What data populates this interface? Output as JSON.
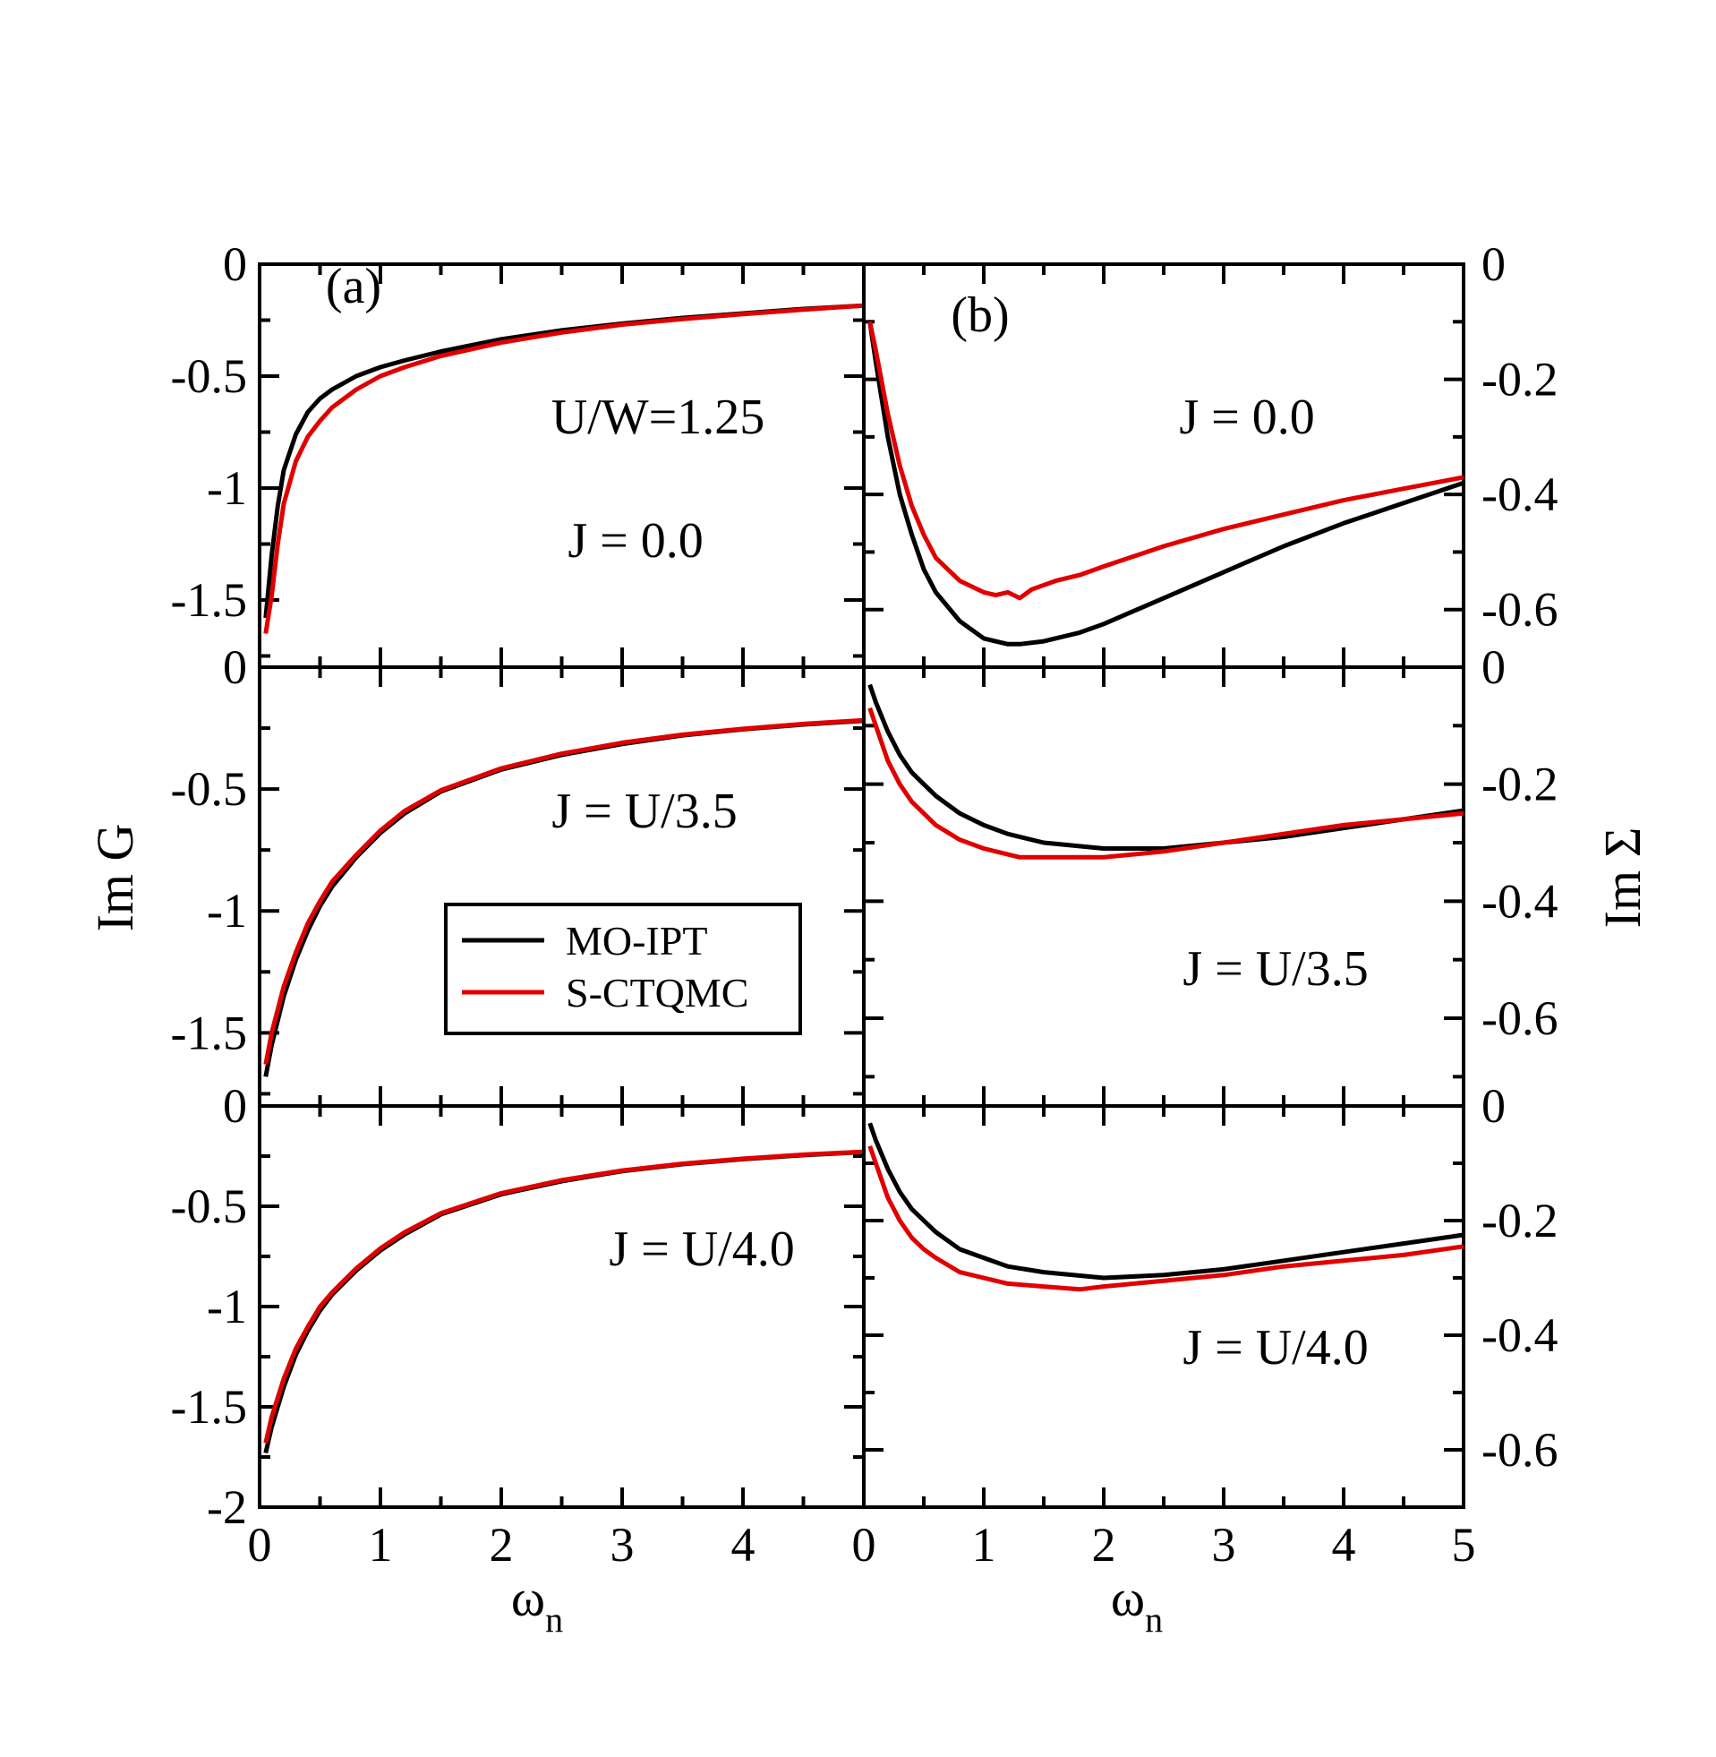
{
  "figure": {
    "x_title": "ω",
    "x_title_sub": "n",
    "y_title_left": "Im G",
    "y_title_right": "Im Σ"
  },
  "legend": {
    "entries": [
      {
        "label": "MO-IPT",
        "color": "#000000"
      },
      {
        "label": "S-CTQMC",
        "color": "#e00000"
      }
    ]
  },
  "colors": {
    "mo_ipt": "#000000",
    "s_ctqmc": "#e00000"
  },
  "chart_data": [
    {
      "type": "line",
      "column": "a",
      "row": 1,
      "panel_label": "(a)",
      "annotations": [
        "U/W=1.25",
        "J = 0.0"
      ],
      "xlim": [
        0,
        5
      ],
      "ylim": [
        -1.8,
        0
      ],
      "y_tick_labels": [
        "0",
        "-0.5",
        "-1",
        "-1.5"
      ],
      "x_tick_labels": [],
      "series": [
        {
          "name": "MO-IPT",
          "color": "#000000",
          "x": [
            0.05,
            0.1,
            0.15,
            0.2,
            0.3,
            0.4,
            0.5,
            0.6,
            0.8,
            1.0,
            1.2,
            1.5,
            2.0,
            2.5,
            3.0,
            3.5,
            4.0,
            4.5,
            5.0
          ],
          "y": [
            -1.58,
            -1.3,
            -1.08,
            -0.92,
            -0.76,
            -0.66,
            -0.6,
            -0.56,
            -0.5,
            -0.46,
            -0.43,
            -0.39,
            -0.335,
            -0.295,
            -0.265,
            -0.24,
            -0.22,
            -0.2,
            -0.185
          ]
        },
        {
          "name": "S-CTQMC",
          "color": "#e00000",
          "x": [
            0.05,
            0.1,
            0.15,
            0.2,
            0.3,
            0.4,
            0.5,
            0.6,
            0.8,
            1.0,
            1.2,
            1.5,
            2.0,
            2.5,
            3.0,
            3.5,
            4.0,
            4.5,
            5.0
          ],
          "y": [
            -1.65,
            -1.48,
            -1.25,
            -1.07,
            -0.88,
            -0.77,
            -0.7,
            -0.64,
            -0.56,
            -0.5,
            -0.46,
            -0.41,
            -0.35,
            -0.305,
            -0.27,
            -0.245,
            -0.223,
            -0.203,
            -0.185
          ]
        }
      ]
    },
    {
      "type": "line",
      "column": "a",
      "row": 2,
      "annotations": [
        "J = U/3.5"
      ],
      "xlim": [
        0,
        5
      ],
      "ylim": [
        -1.8,
        0
      ],
      "y_tick_labels": [
        "0",
        "-0.5",
        "-1",
        "-1.5"
      ],
      "x_tick_labels": [],
      "series": [
        {
          "name": "MO-IPT",
          "color": "#000000",
          "x": [
            0.05,
            0.1,
            0.2,
            0.3,
            0.4,
            0.5,
            0.6,
            0.8,
            1.0,
            1.2,
            1.5,
            2.0,
            2.5,
            3.0,
            3.5,
            4.0,
            4.5,
            5.0
          ],
          "y": [
            -1.68,
            -1.55,
            -1.35,
            -1.2,
            -1.08,
            -0.98,
            -0.9,
            -0.78,
            -0.68,
            -0.6,
            -0.51,
            -0.42,
            -0.36,
            -0.315,
            -0.28,
            -0.255,
            -0.235,
            -0.22
          ]
        },
        {
          "name": "S-CTQMC",
          "color": "#e00000",
          "x": [
            0.05,
            0.1,
            0.2,
            0.3,
            0.4,
            0.5,
            0.6,
            0.8,
            1.0,
            1.2,
            1.5,
            2.0,
            2.5,
            3.0,
            3.5,
            4.0,
            4.5,
            5.0
          ],
          "y": [
            -1.63,
            -1.5,
            -1.31,
            -1.17,
            -1.05,
            -0.96,
            -0.88,
            -0.77,
            -0.67,
            -0.59,
            -0.505,
            -0.415,
            -0.355,
            -0.31,
            -0.277,
            -0.253,
            -0.233,
            -0.218
          ]
        }
      ]
    },
    {
      "type": "line",
      "column": "a",
      "row": 3,
      "annotations": [
        "J = U/4.0"
      ],
      "xlim": [
        0,
        5
      ],
      "ylim": [
        -2.0,
        0
      ],
      "y_tick_labels": [
        "0",
        "-0.5",
        "-1",
        "-1.5",
        "-2"
      ],
      "x_tick_labels": [
        "0",
        "1",
        "2",
        "3",
        "4"
      ],
      "series": [
        {
          "name": "MO-IPT",
          "color": "#000000",
          "x": [
            0.05,
            0.1,
            0.2,
            0.3,
            0.4,
            0.5,
            0.6,
            0.8,
            1.0,
            1.2,
            1.5,
            2.0,
            2.5,
            3.0,
            3.5,
            4.0,
            4.5,
            5.0
          ],
          "y": [
            -1.73,
            -1.6,
            -1.4,
            -1.24,
            -1.12,
            -1.02,
            -0.94,
            -0.82,
            -0.72,
            -0.64,
            -0.54,
            -0.44,
            -0.375,
            -0.325,
            -0.29,
            -0.265,
            -0.245,
            -0.23
          ]
        },
        {
          "name": "S-CTQMC",
          "color": "#e00000",
          "x": [
            0.05,
            0.1,
            0.2,
            0.3,
            0.4,
            0.5,
            0.6,
            0.8,
            1.0,
            1.2,
            1.5,
            2.0,
            2.5,
            3.0,
            3.5,
            4.0,
            4.5,
            5.0
          ],
          "y": [
            -1.68,
            -1.55,
            -1.36,
            -1.21,
            -1.1,
            -1.0,
            -0.93,
            -0.81,
            -0.71,
            -0.63,
            -0.535,
            -0.435,
            -0.37,
            -0.322,
            -0.288,
            -0.263,
            -0.243,
            -0.228
          ]
        }
      ]
    },
    {
      "type": "line",
      "column": "b",
      "row": 1,
      "panel_label": "(b)",
      "annotations": [
        "J = 0.0"
      ],
      "xlim": [
        0,
        5
      ],
      "ylim": [
        -0.7,
        0
      ],
      "y_tick_labels": [
        "0",
        "-0.2",
        "-0.4",
        "-0.6"
      ],
      "x_tick_labels": [],
      "series": [
        {
          "name": "MO-IPT",
          "color": "#000000",
          "x": [
            0.05,
            0.1,
            0.2,
            0.3,
            0.4,
            0.5,
            0.6,
            0.8,
            1.0,
            1.2,
            1.3,
            1.5,
            1.8,
            2.0,
            2.5,
            3.0,
            3.5,
            4.0,
            4.5,
            5.0
          ],
          "y": [
            -0.1,
            -0.17,
            -0.3,
            -0.4,
            -0.47,
            -0.53,
            -0.57,
            -0.62,
            -0.65,
            -0.66,
            -0.66,
            -0.655,
            -0.64,
            -0.625,
            -0.58,
            -0.535,
            -0.49,
            -0.45,
            -0.415,
            -0.38
          ]
        },
        {
          "name": "S-CTQMC",
          "color": "#e00000",
          "x": [
            0.05,
            0.1,
            0.2,
            0.3,
            0.4,
            0.5,
            0.6,
            0.8,
            1.0,
            1.1,
            1.2,
            1.3,
            1.4,
            1.6,
            1.8,
            2.0,
            2.5,
            3.0,
            3.5,
            4.0,
            4.5,
            5.0
          ],
          "y": [
            -0.1,
            -0.15,
            -0.26,
            -0.35,
            -0.42,
            -0.47,
            -0.51,
            -0.55,
            -0.57,
            -0.575,
            -0.57,
            -0.58,
            -0.565,
            -0.55,
            -0.54,
            -0.525,
            -0.49,
            -0.46,
            -0.435,
            -0.41,
            -0.39,
            -0.37
          ]
        }
      ]
    },
    {
      "type": "line",
      "column": "b",
      "row": 2,
      "annotations": [
        "J = U/3.5"
      ],
      "xlim": [
        0,
        5
      ],
      "ylim": [
        -0.75,
        0
      ],
      "y_tick_labels": [
        "0",
        "-0.2",
        "-0.4",
        "-0.6"
      ],
      "x_tick_labels": [],
      "series": [
        {
          "name": "MO-IPT",
          "color": "#000000",
          "x": [
            0.05,
            0.1,
            0.2,
            0.3,
            0.4,
            0.5,
            0.6,
            0.8,
            1.0,
            1.2,
            1.5,
            2.0,
            2.5,
            3.0,
            3.5,
            4.0,
            4.5,
            5.0
          ],
          "y": [
            -0.03,
            -0.06,
            -0.11,
            -0.15,
            -0.18,
            -0.2,
            -0.22,
            -0.25,
            -0.27,
            -0.285,
            -0.3,
            -0.31,
            -0.31,
            -0.3,
            -0.29,
            -0.275,
            -0.26,
            -0.245
          ]
        },
        {
          "name": "S-CTQMC",
          "color": "#e00000",
          "x": [
            0.05,
            0.1,
            0.2,
            0.3,
            0.4,
            0.5,
            0.6,
            0.8,
            1.0,
            1.2,
            1.3,
            1.5,
            2.0,
            2.5,
            3.0,
            3.5,
            4.0,
            4.5,
            5.0
          ],
          "y": [
            -0.07,
            -0.1,
            -0.16,
            -0.2,
            -0.23,
            -0.25,
            -0.27,
            -0.295,
            -0.31,
            -0.32,
            -0.325,
            -0.325,
            -0.325,
            -0.315,
            -0.3,
            -0.285,
            -0.27,
            -0.26,
            -0.25
          ]
        }
      ]
    },
    {
      "type": "line",
      "column": "b",
      "row": 3,
      "annotations": [
        "J = U/4.0"
      ],
      "xlim": [
        0,
        5
      ],
      "ylim": [
        -0.7,
        0
      ],
      "y_tick_labels": [
        "0",
        "-0.2",
        "-0.4",
        "-0.6"
      ],
      "x_tick_labels": [
        "0",
        "1",
        "2",
        "3",
        "4",
        "5"
      ],
      "series": [
        {
          "name": "MO-IPT",
          "color": "#000000",
          "x": [
            0.05,
            0.1,
            0.2,
            0.3,
            0.4,
            0.5,
            0.6,
            0.8,
            1.0,
            1.2,
            1.5,
            2.0,
            2.5,
            3.0,
            3.5,
            4.0,
            4.5,
            5.0
          ],
          "y": [
            -0.03,
            -0.06,
            -0.11,
            -0.15,
            -0.18,
            -0.2,
            -0.22,
            -0.25,
            -0.265,
            -0.28,
            -0.29,
            -0.3,
            -0.295,
            -0.285,
            -0.27,
            -0.255,
            -0.24,
            -0.225
          ]
        },
        {
          "name": "S-CTQMC",
          "color": "#e00000",
          "x": [
            0.05,
            0.1,
            0.2,
            0.3,
            0.4,
            0.5,
            0.6,
            0.8,
            1.0,
            1.2,
            1.5,
            1.8,
            2.0,
            2.5,
            3.0,
            3.5,
            4.0,
            4.5,
            5.0
          ],
          "y": [
            -0.07,
            -0.1,
            -0.16,
            -0.2,
            -0.23,
            -0.25,
            -0.265,
            -0.29,
            -0.3,
            -0.31,
            -0.315,
            -0.32,
            -0.315,
            -0.305,
            -0.295,
            -0.28,
            -0.27,
            -0.26,
            -0.245
          ]
        }
      ]
    }
  ]
}
